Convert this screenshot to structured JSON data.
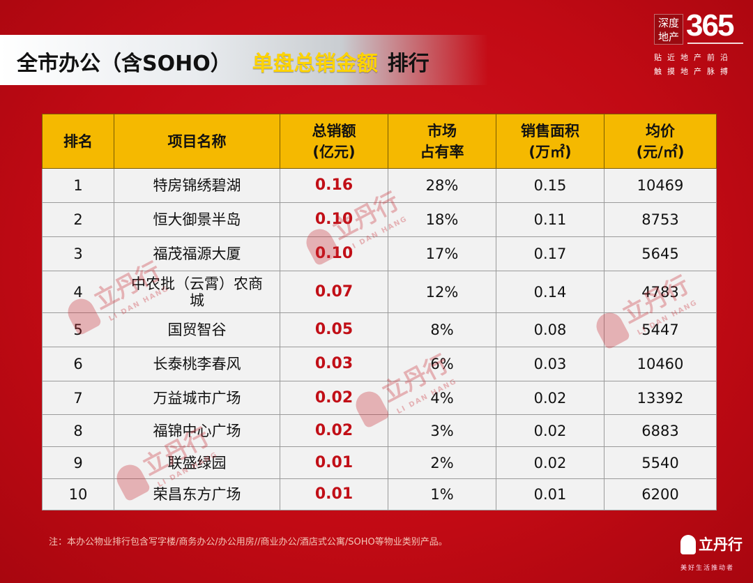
{
  "header": {
    "title_part1": "全市办公（含SOHO）",
    "title_part2": "单盘总销金额",
    "title_part3": "排行"
  },
  "logo": {
    "square_text": "深度地产",
    "number": "365",
    "slogan_line1": "贴近地产前沿",
    "slogan_line2": "触摸地产脉搏"
  },
  "table": {
    "headers": [
      "排名",
      "项目名称",
      "总销额\n(亿元)",
      "市场\n占有率",
      "销售面积\n(万㎡)",
      "均价\n(元/㎡)"
    ],
    "rows": [
      {
        "rank": "1",
        "name": "特房锦绣碧湖",
        "amount": "0.16",
        "share": "28%",
        "area": "0.15",
        "price": "10469"
      },
      {
        "rank": "2",
        "name": "恒大御景半岛",
        "amount": "0.10",
        "share": "18%",
        "area": "0.11",
        "price": "8753"
      },
      {
        "rank": "3",
        "name": "福茂福源大厦",
        "amount": "0.10",
        "share": "17%",
        "area": "0.17",
        "price": "5645"
      },
      {
        "rank": "4",
        "name": "中农批（云霄）农商城",
        "amount": "0.07",
        "share": "12%",
        "area": "0.14",
        "price": "4783"
      },
      {
        "rank": "5",
        "name": "国贸智谷",
        "amount": "0.05",
        "share": "8%",
        "area": "0.08",
        "price": "5447"
      },
      {
        "rank": "6",
        "name": "长泰桃李春风",
        "amount": "0.03",
        "share": "6%",
        "area": "0.03",
        "price": "10460"
      },
      {
        "rank": "7",
        "name": "万益城市广场",
        "amount": "0.02",
        "share": "4%",
        "area": "0.02",
        "price": "13392"
      },
      {
        "rank": "8",
        "name": "福锦中心广场",
        "amount": "0.02",
        "share": "3%",
        "area": "0.02",
        "price": "6883"
      },
      {
        "rank": "9",
        "name": "联盛绿园",
        "amount": "0.01",
        "share": "2%",
        "area": "0.02",
        "price": "5540"
      },
      {
        "rank": "10",
        "name": "荣昌东方广场",
        "amount": "0.01",
        "share": "1%",
        "area": "0.01",
        "price": "6200"
      }
    ]
  },
  "footnote": "注：本办公物业排行包含写字楼/商务办公/办公用房//商业办公/酒店式公寓/SOHO等物业类别产品。",
  "watermark": {
    "text": "立丹行",
    "sub": "LI DAN HANG"
  },
  "brand": {
    "name": "立丹行",
    "sub": "美好生活推动者"
  },
  "colors": {
    "background": "#c40a16",
    "header_fill": "#f5b900",
    "amount_text": "#c10f17",
    "title_highlight": "#ffd400"
  }
}
